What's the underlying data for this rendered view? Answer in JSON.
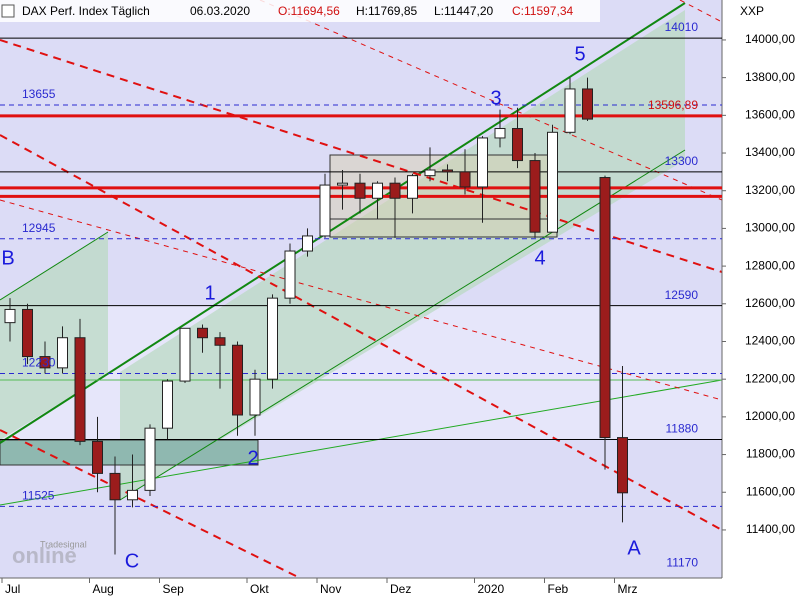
{
  "chart_data": {
    "type": "candlestick",
    "title": "DAX Perf. Index Täglich",
    "date": "06.03.2020",
    "quote": [
      "O:11694,56",
      "H:11769,85",
      "L:11447,20",
      "C:11597,34"
    ],
    "axis_label": "XXP",
    "categories": [
      "Jul",
      null,
      null,
      null,
      null,
      "Aug",
      null,
      null,
      null,
      "Sep",
      null,
      null,
      null,
      null,
      "Okt",
      null,
      null,
      null,
      "Nov",
      null,
      null,
      null,
      "Dez",
      null,
      null,
      null,
      null,
      "2020",
      null,
      null,
      null,
      "Feb",
      null,
      null,
      null,
      "Mrz"
    ],
    "open": [
      12500,
      12570,
      12320,
      12260,
      12420,
      11870,
      11700,
      11560,
      11610,
      11940,
      12190,
      12470,
      12420,
      12380,
      12010,
      12200,
      12630,
      12880,
      12960,
      13230,
      13240,
      13160,
      13240,
      13160,
      13280,
      13310,
      13300,
      13220,
      13480,
      13530,
      13360,
      12980,
      13510,
      13740,
      13270,
      11890
    ],
    "high": [
      12630,
      12600,
      12400,
      12480,
      12520,
      12000,
      11790,
      11800,
      11960,
      12200,
      12470,
      12490,
      12450,
      12400,
      12250,
      12650,
      12920,
      13000,
      13290,
      13310,
      13290,
      13250,
      13270,
      13290,
      13430,
      13340,
      13420,
      13490,
      13630,
      13640,
      13400,
      13550,
      13800,
      13800,
      13280,
      12270
    ],
    "low": [
      12400,
      12280,
      12230,
      12230,
      11850,
      11600,
      11270,
      11520,
      11580,
      11880,
      12180,
      12340,
      12150,
      11900,
      11900,
      12150,
      12600,
      12850,
      12950,
      13100,
      13080,
      13050,
      12950,
      13080,
      13250,
      13250,
      13180,
      13030,
      13430,
      13320,
      12950,
      12980,
      13500,
      13570,
      11720,
      11440
    ],
    "close": [
      12570,
      12320,
      12260,
      12420,
      11870,
      11700,
      11560,
      11610,
      11940,
      12190,
      12470,
      12420,
      12380,
      12010,
      12200,
      12630,
      12880,
      12960,
      13230,
      13240,
      13160,
      13240,
      13160,
      13280,
      13310,
      13300,
      13220,
      13480,
      13530,
      13360,
      12980,
      13510,
      13740,
      13580,
      11890,
      11597
    ],
    "up_color": "#ffffff",
    "down_color": "#9b1c1c",
    "ylim": [
      11145,
      14212
    ],
    "yticks": [
      {
        "value": 11400,
        "label": "11400,00"
      },
      {
        "value": 11600,
        "label": "11600,00"
      },
      {
        "value": 11800,
        "label": "11800,00"
      },
      {
        "value": 12000,
        "label": "12000,00"
      },
      {
        "value": 12200,
        "label": "12200,00"
      },
      {
        "value": 12400,
        "label": "12400,00"
      },
      {
        "value": 12600,
        "label": "12600,00"
      },
      {
        "value": 12800,
        "label": "12800,00"
      },
      {
        "value": 13000,
        "label": "13000,00"
      },
      {
        "value": 13200,
        "label": "13200,00"
      },
      {
        "value": 13400,
        "label": "13400,00"
      },
      {
        "value": 13600,
        "label": "13600,00"
      },
      {
        "value": 13800,
        "label": "13800,00"
      },
      {
        "value": 14000,
        "label": "14000,00"
      }
    ],
    "levels": [
      {
        "value": 14010,
        "style": "solid",
        "color": "#000000",
        "side": "right"
      },
      {
        "value": 13655,
        "style": "dashed",
        "color": "#2a2ad0",
        "side": "left"
      },
      {
        "value": 13596.89,
        "label": "13596,89",
        "style": "thick",
        "color": "#e01010",
        "side": "right"
      },
      {
        "value": 13300,
        "style": "solid",
        "color": "#000000",
        "side": "right"
      },
      {
        "value": 13215,
        "style": "thick",
        "color": "#e01010"
      },
      {
        "value": 13170,
        "style": "thick",
        "color": "#e01010"
      },
      {
        "value": 12945,
        "style": "dashed",
        "color": "#2a2ad0",
        "side": "left"
      },
      {
        "value": 12590,
        "style": "solid",
        "color": "#000000",
        "side": "right"
      },
      {
        "value": 12230,
        "style": "dashed",
        "color": "#2a2ad0",
        "side": "left"
      },
      {
        "value": 11880,
        "style": "solid",
        "color": "#000000",
        "side": "right"
      },
      {
        "value": 11525,
        "style": "dashed",
        "color": "#2a2ad0",
        "side": "left"
      },
      {
        "value": 11170,
        "style": "none",
        "color": "#2a2ad0",
        "side": "right"
      }
    ],
    "annotations": [
      "5",
      "3",
      "1",
      "2",
      "4",
      "B",
      "A",
      "C"
    ],
    "logo": [
      "Tradesignal",
      "online"
    ]
  }
}
